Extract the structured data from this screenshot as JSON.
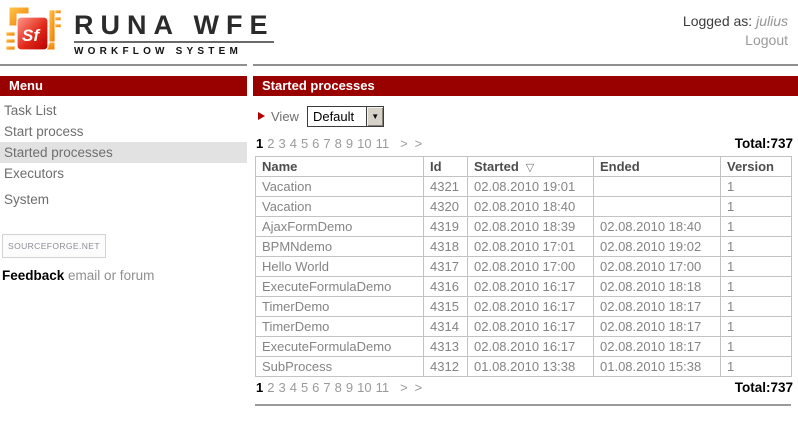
{
  "header": {
    "logo": {
      "brand": "RUNA WFE",
      "subtitle": "WORKFLOW SYSTEM",
      "icon_text": "Sf"
    },
    "logged_as_label": "Logged as:",
    "username": "julius",
    "logout_label": "Logout"
  },
  "sidebar": {
    "title": "Menu",
    "items": [
      {
        "label": "Task List",
        "active": false
      },
      {
        "label": "Start process",
        "active": false
      },
      {
        "label": "Started processes",
        "active": true
      },
      {
        "label": "Executors",
        "active": false
      },
      {
        "label": "System",
        "active": false
      }
    ],
    "sourceforge_badge": "SOURCEFORGE.NET",
    "feedback_label": "Feedback",
    "feedback_links": "email or forum"
  },
  "main": {
    "title": "Started processes",
    "view": {
      "label": "View",
      "selected": "Default"
    },
    "pagination": {
      "pages": [
        "1",
        "2",
        "3",
        "4",
        "5",
        "6",
        "7",
        "8",
        "9",
        "10",
        "11"
      ],
      "current": "1",
      "next_symbol": ">",
      "last_symbol": ">",
      "total_label": "Total:737"
    },
    "table": {
      "columns": [
        "Name",
        "Id",
        "Started",
        "Ended",
        "Version"
      ],
      "sorted_by": "Started",
      "sort_glyph": "▽",
      "rows": [
        [
          "Vacation",
          "4321",
          "02.08.2010 19:01",
          "",
          "1"
        ],
        [
          "Vacation",
          "4320",
          "02.08.2010 18:40",
          "",
          "1"
        ],
        [
          "AjaxFormDemo",
          "4319",
          "02.08.2010 18:39",
          "02.08.2010 18:40",
          "1"
        ],
        [
          "BPMNdemo",
          "4318",
          "02.08.2010 17:01",
          "02.08.2010 19:02",
          "1"
        ],
        [
          "Hello World",
          "4317",
          "02.08.2010 17:00",
          "02.08.2010 17:00",
          "1"
        ],
        [
          "ExecuteFormulaDemo",
          "4316",
          "02.08.2010 16:17",
          "02.08.2010 18:18",
          "1"
        ],
        [
          "TimerDemo",
          "4315",
          "02.08.2010 16:17",
          "02.08.2010 18:17",
          "1"
        ],
        [
          "TimerDemo",
          "4314",
          "02.08.2010 16:17",
          "02.08.2010 18:17",
          "1"
        ],
        [
          "ExecuteFormulaDemo",
          "4313",
          "02.08.2010 16:17",
          "02.08.2010 18:17",
          "1"
        ],
        [
          "SubProcess",
          "4312",
          "01.08.2010 13:38",
          "01.08.2010 15:38",
          "1"
        ]
      ]
    }
  },
  "colors": {
    "accent_red": "#990000",
    "active_menu_bg": "#e2e2e2",
    "muted_text": "#848484",
    "divider_gray": "#8f8f8f"
  }
}
